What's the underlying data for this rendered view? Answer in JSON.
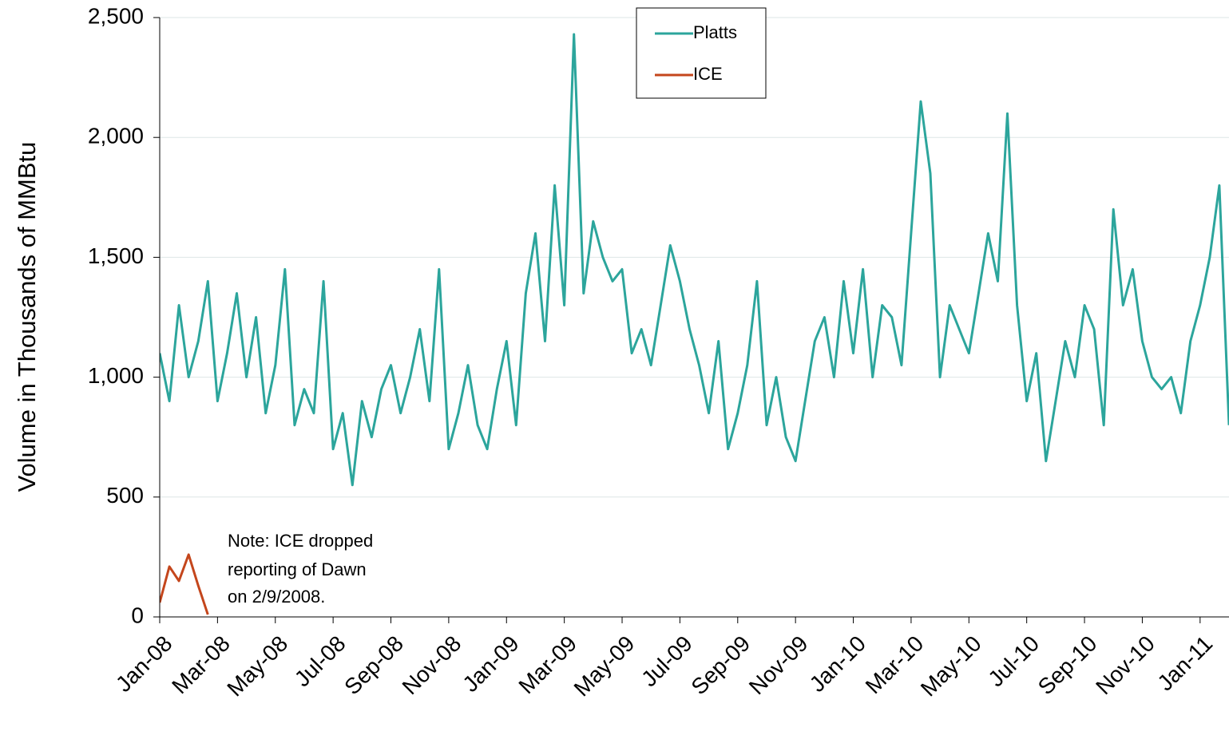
{
  "chart_data": {
    "type": "line",
    "y_label": "Volume in Thousands of MMBtu",
    "annotation": [
      "Note: ICE dropped",
      "reporting of Dawn",
      "on 2/9/2008."
    ],
    "categories": [
      "Jan-08",
      null,
      null,
      null,
      null,
      null,
      "Mar-08",
      null,
      null,
      null,
      null,
      null,
      "May-08",
      null,
      null,
      null,
      null,
      null,
      "Jul-08",
      null,
      null,
      null,
      null,
      null,
      "Sep-08",
      null,
      null,
      null,
      null,
      null,
      "Nov-08",
      null,
      null,
      null,
      null,
      null,
      "Jan-09",
      null,
      null,
      null,
      null,
      null,
      "Mar-09",
      null,
      null,
      null,
      null,
      null,
      "May-09",
      null,
      null,
      null,
      null,
      null,
      "Jul-09",
      null,
      null,
      null,
      null,
      null,
      "Sep-09",
      null,
      null,
      null,
      null,
      null,
      "Nov-09",
      null,
      null,
      null,
      null,
      null,
      "Jan-10",
      null,
      null,
      null,
      null,
      null,
      "Mar-10",
      null,
      null,
      null,
      null,
      null,
      "May-10",
      null,
      null,
      null,
      null,
      null,
      "Jul-10",
      null,
      null,
      null,
      null,
      null,
      "Sep-10",
      null,
      null,
      null,
      null,
      null,
      "Nov-10",
      null,
      null,
      null,
      null,
      null,
      "Jan-11",
      null,
      null,
      null
    ],
    "series": [
      {
        "name": "Platts",
        "color": "#2ca59c",
        "values": [
          1100,
          900,
          1300,
          1000,
          1150,
          1400,
          900,
          1100,
          1350,
          1000,
          1250,
          850,
          1050,
          1450,
          800,
          950,
          850,
          1400,
          700,
          850,
          550,
          900,
          750,
          950,
          1050,
          850,
          1000,
          1200,
          900,
          1450,
          700,
          850,
          1050,
          800,
          700,
          950,
          1150,
          800,
          1350,
          1600,
          1150,
          1800,
          1300,
          2430,
          1350,
          1650,
          1500,
          1400,
          1450,
          1100,
          1200,
          1050,
          1300,
          1550,
          1400,
          1200,
          1050,
          850,
          1150,
          700,
          850,
          1050,
          1400,
          800,
          1000,
          750,
          650,
          900,
          1150,
          1250,
          1000,
          1400,
          1100,
          1450,
          1000,
          1300,
          1250,
          1050,
          1600,
          2150,
          1850,
          1000,
          1300,
          1200,
          1100,
          1350,
          1600,
          1400,
          2100,
          1300,
          900,
          1100,
          650,
          900,
          1150,
          1000,
          1300,
          1200,
          800,
          1700,
          1300,
          1450,
          1150,
          1000,
          950,
          1000,
          850,
          1150,
          1300,
          1500,
          1800,
          800
        ]
      },
      {
        "name": "ICE",
        "color": "#c4461c",
        "values": [
          60,
          210,
          150,
          260,
          130,
          10,
          null,
          null,
          null,
          null,
          null,
          null,
          null,
          null,
          null,
          null,
          null,
          null,
          null,
          null,
          null,
          null,
          null,
          null,
          null,
          null,
          null,
          null,
          null,
          null,
          null,
          null,
          null,
          null,
          null,
          null,
          null,
          null,
          null,
          null,
          null,
          null,
          null,
          null,
          null,
          null,
          null,
          null,
          null,
          null,
          null,
          null,
          null,
          null,
          null,
          null,
          null,
          null,
          null,
          null,
          null,
          null,
          null,
          null,
          null,
          null,
          null,
          null,
          null,
          null,
          null,
          null,
          null,
          null,
          null,
          null,
          null,
          null,
          null,
          null,
          null,
          null,
          null,
          null,
          null,
          null,
          null,
          null,
          null,
          null,
          null,
          null,
          null,
          null,
          null,
          null,
          null,
          null,
          null,
          null,
          null,
          null,
          null,
          null,
          null,
          null,
          null,
          null,
          null,
          null,
          null,
          null
        ]
      }
    ],
    "ylim": [
      0,
      2500
    ],
    "yticks": [
      0,
      500,
      {
        "value": 1000,
        "label": "1,000"
      },
      {
        "value": 1500,
        "label": "1,500"
      },
      {
        "value": 2000,
        "label": "2,000"
      },
      {
        "value": 2500,
        "label": "2,500"
      }
    ],
    "grid": true
  }
}
